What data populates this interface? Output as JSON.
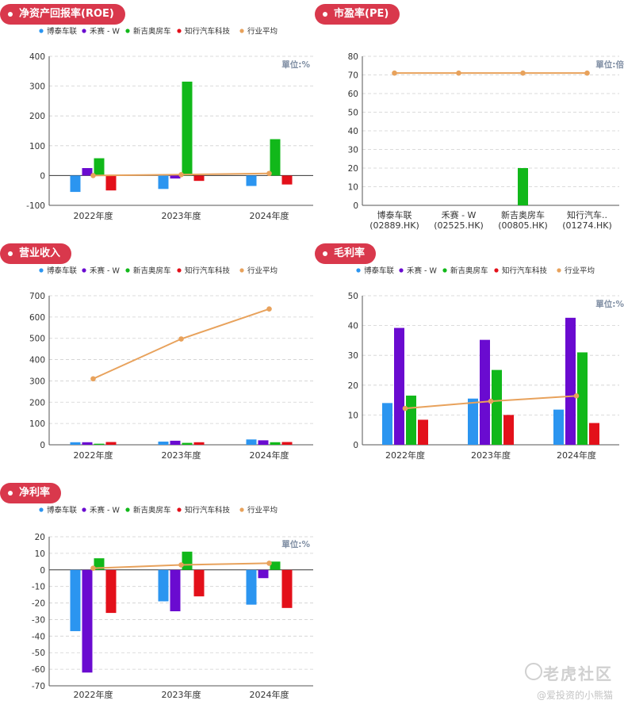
{
  "colors": {
    "pill_bg": "#d9384c",
    "series": [
      "#2b95f0",
      "#6a0bd0",
      "#11b81a",
      "#e3101a",
      "#e8a25c"
    ]
  },
  "legend": [
    "博泰车联",
    "禾赛 - W",
    "新吉奥房车",
    "知行汽车科技",
    "行业平均"
  ],
  "chart_data": [
    {
      "title": "净资产回报率(ROE)",
      "type": "bar",
      "unit": "單位:%",
      "categories": [
        "2022年度",
        "2023年度",
        "2024年度"
      ],
      "ylim": [
        -100,
        400
      ],
      "yticks": [
        -100,
        0,
        100,
        200,
        300,
        400
      ],
      "series": [
        {
          "name": "博泰车联",
          "values": [
            -55,
            -45,
            -35
          ]
        },
        {
          "name": "禾赛 - W",
          "values": [
            25,
            -10,
            null
          ]
        },
        {
          "name": "新吉奥房车",
          "values": [
            58,
            315,
            122
          ]
        },
        {
          "name": "知行汽车科技",
          "values": [
            -50,
            -18,
            -30
          ]
        }
      ],
      "line": {
        "name": "行业平均",
        "values": [
          0,
          3,
          7
        ]
      }
    },
    {
      "title": "市盈率(PE)",
      "type": "bar",
      "unit": "單位:倍",
      "categories": [
        "博泰车联\n(02889.HK)",
        "禾赛 - W\n(02525.HK)",
        "新吉奥房车\n(00805.HK)",
        "知行汽车..\n(01274.HK)"
      ],
      "ylim": [
        0,
        80
      ],
      "yticks": [
        0,
        10,
        20,
        30,
        40,
        50,
        60,
        70,
        80
      ],
      "values": [
        null,
        null,
        20,
        null
      ],
      "line": {
        "name": "行业平均",
        "values": [
          71,
          71,
          71,
          71
        ]
      }
    },
    {
      "title": "营业收入",
      "type": "bar",
      "unit": "",
      "categories": [
        "2022年度",
        "2023年度",
        "2024年度"
      ],
      "ylim": [
        0,
        700
      ],
      "yticks": [
        0,
        100,
        200,
        300,
        400,
        500,
        600,
        700
      ],
      "series": [
        {
          "name": "博泰车联",
          "values": [
            12,
            15,
            25
          ]
        },
        {
          "name": "禾赛 - W",
          "values": [
            12,
            19,
            21
          ]
        },
        {
          "name": "新吉奥房车",
          "values": [
            5,
            9,
            12
          ]
        },
        {
          "name": "知行汽车科技",
          "values": [
            13,
            12,
            13
          ]
        }
      ],
      "line": {
        "name": "行业平均",
        "values": [
          310,
          497,
          638
        ]
      }
    },
    {
      "title": "毛利率",
      "type": "bar",
      "unit": "單位:%",
      "categories": [
        "2022年度",
        "2023年度",
        "2024年度"
      ],
      "ylim": [
        0,
        50
      ],
      "yticks": [
        0,
        10,
        20,
        30,
        40,
        50
      ],
      "series": [
        {
          "name": "博泰车联",
          "values": [
            14,
            15.5,
            11.8
          ]
        },
        {
          "name": "禾赛 - W",
          "values": [
            39.2,
            35.2,
            42.6
          ]
        },
        {
          "name": "新吉奥房车",
          "values": [
            16.5,
            25.1,
            31
          ]
        },
        {
          "name": "知行汽车科技",
          "values": [
            8.4,
            10,
            7.3
          ]
        }
      ],
      "line": {
        "name": "行业平均",
        "values": [
          12.2,
          14.6,
          16.4
        ]
      }
    },
    {
      "title": "净利率",
      "type": "bar",
      "unit": "單位:%",
      "categories": [
        "2022年度",
        "2023年度",
        "2024年度"
      ],
      "ylim": [
        -70,
        20
      ],
      "yticks": [
        -70,
        -60,
        -50,
        -40,
        -30,
        -20,
        -10,
        0,
        10,
        20
      ],
      "series": [
        {
          "name": "博泰车联",
          "values": [
            -37,
            -19,
            -21
          ]
        },
        {
          "name": "禾赛 - W",
          "values": [
            -62,
            -25,
            -5
          ]
        },
        {
          "name": "新吉奥房车",
          "values": [
            7,
            11,
            5
          ]
        },
        {
          "name": "知行汽车科技",
          "values": [
            -26,
            -16,
            -23
          ]
        }
      ],
      "line": {
        "name": "行业平均",
        "values": [
          1,
          3,
          4
        ]
      }
    }
  ],
  "watermark": {
    "brand": "老虎社区",
    "author": "@爱投资的小熊猫"
  }
}
